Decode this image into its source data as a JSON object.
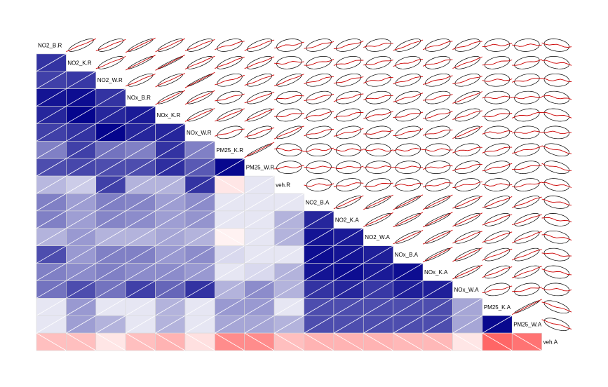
{
  "chart_data": {
    "type": "heatmap",
    "title": "",
    "variables": [
      "NO2_B.R",
      "NO2_K.R",
      "NO2_W.R",
      "NOx_B.R",
      "NOx_K.R",
      "NOx_W.R",
      "PM25_K.R",
      "PM25_W.R",
      "veh.R",
      "NO2_B.A",
      "NO2_K.A",
      "NO2_W.A",
      "NOx_B.A",
      "NOx_K.A",
      "NOx_W.A",
      "PM25_K.A",
      "PM25_W.A",
      "veh.A"
    ],
    "lower_panel": "shade",
    "upper_panel": "ellipse",
    "diag_panel": "labels",
    "lower_values": [
      [],
      [
        0.8
      ],
      [
        0.75,
        0.78
      ],
      [
        0.92,
        0.95,
        0.8
      ],
      [
        0.85,
        0.98,
        0.85,
        0.9
      ],
      [
        0.75,
        0.8,
        0.98,
        0.85,
        0.85
      ],
      [
        0.5,
        0.75,
        0.55,
        0.5,
        0.8,
        0.5
      ],
      [
        0.7,
        0.72,
        0.7,
        0.7,
        0.82,
        0.65,
        0.97
      ],
      [
        0.28,
        0.2,
        0.75,
        0.3,
        0.3,
        0.8,
        -0.1,
        0.1
      ],
      [
        0.5,
        0.38,
        0.5,
        0.48,
        0.38,
        0.45,
        0.1,
        0.1,
        0.1
      ],
      [
        0.5,
        0.38,
        0.48,
        0.45,
        0.38,
        0.42,
        0.1,
        0.1,
        0.3,
        0.85
      ],
      [
        0.3,
        0.4,
        0.3,
        0.3,
        0.35,
        0.3,
        -0.05,
        0.1,
        0.3,
        0.92,
        0.9
      ],
      [
        0.7,
        0.4,
        0.5,
        0.5,
        0.4,
        0.45,
        0.15,
        0.1,
        0.1,
        0.95,
        0.92,
        0.88
      ],
      [
        0.5,
        0.45,
        0.5,
        0.45,
        0.45,
        0.4,
        0.1,
        0.15,
        0.3,
        0.92,
        0.95,
        0.9,
        0.95
      ],
      [
        0.55,
        0.7,
        0.55,
        0.75,
        0.6,
        0.8,
        0.3,
        0.45,
        0.3,
        0.8,
        0.85,
        0.78,
        0.88,
        0.88
      ],
      [
        0.1,
        0.4,
        0.1,
        0.1,
        0.3,
        0.1,
        0.4,
        0.4,
        0.1,
        0.7,
        0.7,
        0.7,
        0.7,
        0.7,
        0.35
      ],
      [
        0.1,
        0.38,
        0.3,
        0.1,
        0.3,
        0.1,
        0.35,
        0.35,
        0.3,
        0.7,
        0.7,
        0.7,
        0.7,
        0.7,
        0.35,
        0.97
      ],
      [
        -0.25,
        -0.25,
        -0.1,
        -0.25,
        -0.3,
        -0.12,
        -0.45,
        -0.45,
        -0.25,
        -0.3,
        -0.3,
        -0.3,
        -0.28,
        -0.28,
        -0.1,
        -0.6,
        -0.55
      ]
    ],
    "color_scale": {
      "negative": "#FF0000",
      "zero": "#FFFFFF",
      "positive": "#00008B"
    },
    "ellipse_color": "#000000",
    "smoother_color": "#CC0000",
    "grid": false,
    "legend": "none"
  }
}
